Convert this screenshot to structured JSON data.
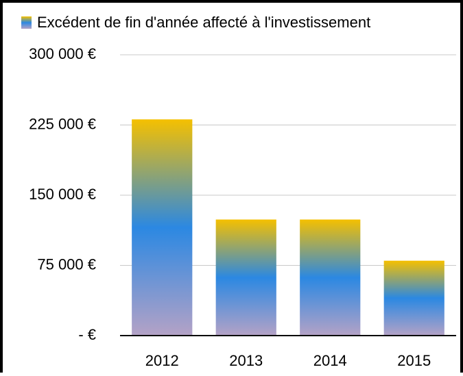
{
  "chart_data": {
    "type": "bar",
    "legend": "Excédent de fin d'année affecté à l'investissement",
    "categories": [
      "2012",
      "2013",
      "2014",
      "2015"
    ],
    "values": [
      231000,
      124000,
      124000,
      80000
    ],
    "gradient": [
      "#b4a2c6",
      "#2b88e2",
      "#f5c000"
    ],
    "ylim": [
      0,
      300000
    ],
    "yticks": [
      {
        "value": 0,
        "label": "-  €"
      },
      {
        "value": 75000,
        "label": "75 000 €"
      },
      {
        "value": 150000,
        "label": "150 000 €"
      },
      {
        "value": 225000,
        "label": "225 000 €"
      },
      {
        "value": 300000,
        "label": "300 000 €"
      }
    ],
    "grid": true
  }
}
